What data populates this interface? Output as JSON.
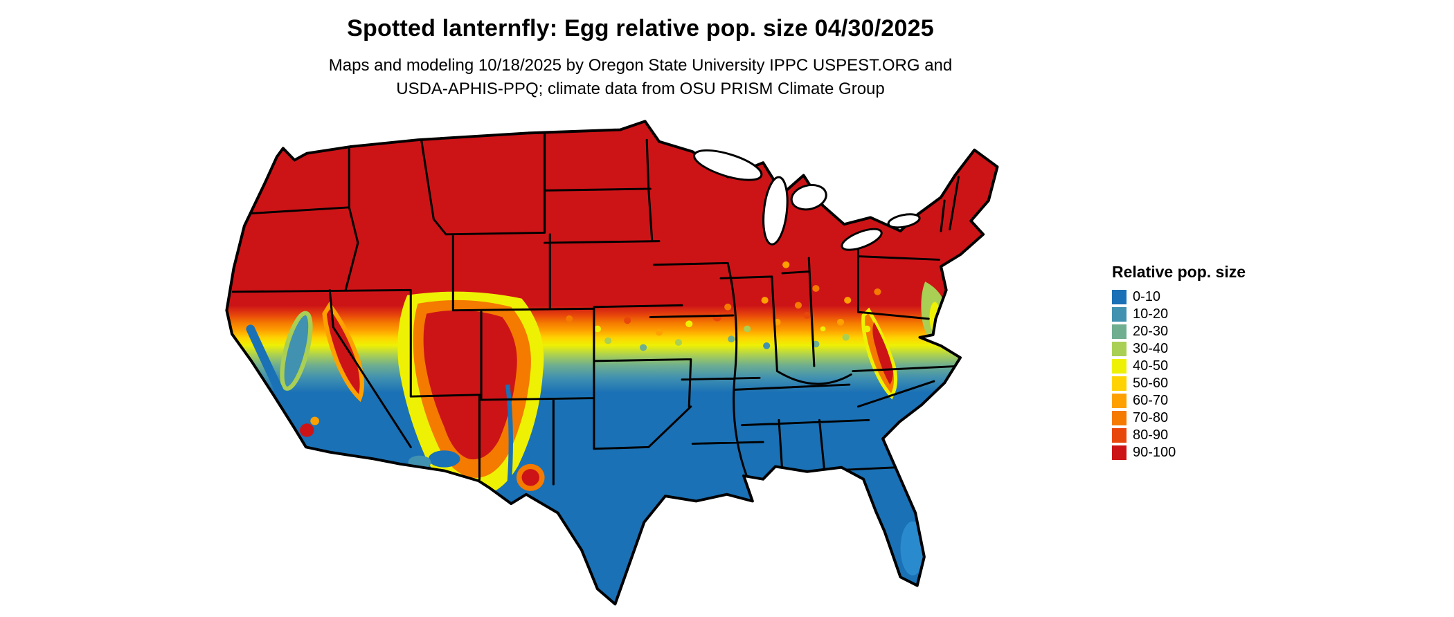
{
  "title": "Spotted lanternfly: Egg relative pop. size 04/30/2025",
  "subtitle_line1": "Maps and modeling 10/18/2025 by Oregon State University IPPC USPEST.ORG and",
  "subtitle_line2": "USDA-APHIS-PPQ; climate data from OSU PRISM Climate Group",
  "map": {
    "region": "contiguous United States",
    "depicts": "Relative egg population size raster: high values (red, 90-100) across the northern states and the mountain West, grading through orange, yellow and green mid-latitude bands to low values (blue, 0-10) across the southern states; mixed mountain/valley detail in California, Arizona and New Mexico."
  },
  "legend": {
    "title": "Relative pop. size",
    "items": [
      {
        "label": "0-10",
        "color": "#1a71b5"
      },
      {
        "label": "10-20",
        "color": "#4191b0"
      },
      {
        "label": "20-30",
        "color": "#6fae8f"
      },
      {
        "label": "30-40",
        "color": "#a9cf54"
      },
      {
        "label": "40-50",
        "color": "#eef104"
      },
      {
        "label": "50-60",
        "color": "#ffd301"
      },
      {
        "label": "60-70",
        "color": "#fda000"
      },
      {
        "label": "70-80",
        "color": "#f47a00"
      },
      {
        "label": "80-90",
        "color": "#e8470b"
      },
      {
        "label": "90-100",
        "color": "#cc1417"
      }
    ]
  }
}
